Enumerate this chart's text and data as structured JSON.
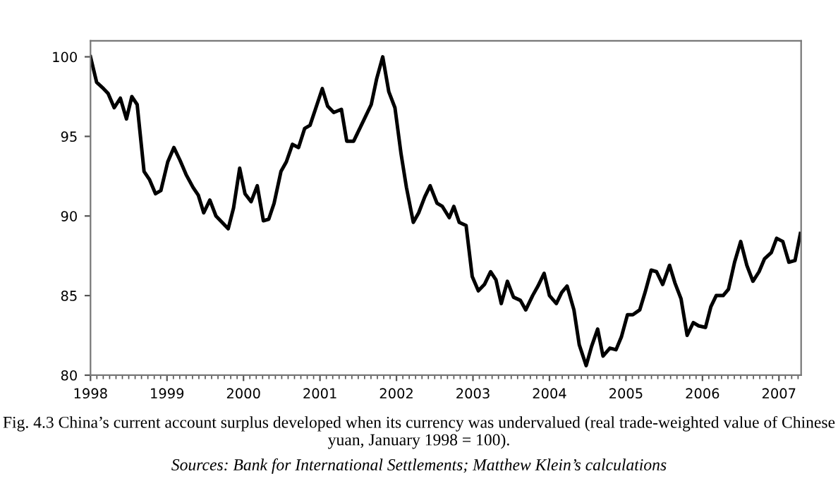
{
  "chart_data": {
    "type": "line",
    "x": [
      1998.0,
      1998.08,
      1998.17,
      1998.23,
      1998.31,
      1998.39,
      1998.47,
      1998.54,
      1998.61,
      1998.7,
      1998.77,
      1998.85,
      1998.92,
      1999.01,
      1999.09,
      1999.17,
      1999.25,
      1999.34,
      1999.41,
      1999.48,
      1999.56,
      1999.64,
      1999.72,
      1999.8,
      1999.87,
      1999.95,
      2000.02,
      2000.1,
      2000.18,
      2000.26,
      2000.33,
      2000.4,
      2000.49,
      2000.56,
      2000.64,
      2000.72,
      2000.8,
      2000.87,
      2000.94,
      2001.03,
      2001.1,
      2001.18,
      2001.28,
      2001.35,
      2001.44,
      2001.51,
      2001.58,
      2001.67,
      2001.74,
      2001.82,
      2001.9,
      2001.98,
      2002.06,
      2002.13,
      2002.22,
      2002.29,
      2002.37,
      2002.44,
      2002.53,
      2002.6,
      2002.69,
      2002.75,
      2002.82,
      2002.91,
      2002.99,
      2003.07,
      2003.15,
      2003.23,
      2003.3,
      2003.37,
      2003.45,
      2003.53,
      2003.62,
      2003.69,
      2003.78,
      2003.85,
      2003.93,
      2004.0,
      2004.09,
      2004.16,
      2004.23,
      2004.32,
      2004.39,
      2004.48,
      2004.55,
      2004.63,
      2004.7,
      2004.79,
      2004.87,
      2004.94,
      2005.02,
      2005.09,
      2005.18,
      2005.25,
      2005.33,
      2005.4,
      2005.48,
      2005.57,
      2005.64,
      2005.72,
      2005.8,
      2005.88,
      2005.95,
      2006.04,
      2006.11,
      2006.18,
      2006.27,
      2006.34,
      2006.42,
      2006.5,
      2006.58,
      2006.66,
      2006.74,
      2006.81,
      2006.9,
      2006.97,
      2007.05,
      2007.13,
      2007.21,
      2007.28
    ],
    "series": [
      {
        "color": "#000000",
        "values": [
          100.0,
          98.4,
          98.0,
          97.7,
          96.8,
          97.4,
          96.1,
          97.5,
          97.0,
          92.8,
          92.3,
          91.4,
          91.6,
          93.4,
          94.3,
          93.5,
          92.6,
          91.8,
          91.3,
          90.2,
          91.0,
          90.0,
          89.6,
          89.2,
          90.5,
          93.0,
          91.4,
          90.9,
          91.9,
          89.7,
          89.8,
          90.8,
          92.8,
          93.4,
          94.5,
          94.3,
          95.5,
          95.7,
          96.7,
          98.0,
          96.9,
          96.5,
          96.7,
          94.7,
          94.7,
          95.4,
          96.1,
          97.0,
          98.6,
          100.0,
          97.8,
          96.8,
          93.9,
          91.8,
          89.6,
          90.2,
          91.2,
          91.9,
          90.8,
          90.6,
          89.9,
          90.6,
          89.6,
          89.4,
          86.2,
          85.3,
          85.7,
          86.5,
          86.0,
          84.5,
          85.9,
          84.9,
          84.7,
          84.1,
          85.0,
          85.6,
          86.4,
          85.0,
          84.5,
          85.2,
          85.6,
          84.1,
          81.9,
          80.6,
          81.8,
          82.9,
          81.2,
          81.7,
          81.6,
          82.4,
          83.8,
          83.8,
          84.1,
          85.2,
          86.6,
          86.5,
          85.7,
          86.9,
          85.8,
          84.8,
          82.5,
          83.3,
          83.1,
          83.0,
          84.3,
          85.0,
          85.0,
          85.4,
          87.1,
          88.4,
          86.9,
          85.9,
          86.5,
          87.3,
          87.7,
          88.6,
          88.4,
          87.1,
          87.2,
          88.9
        ]
      }
    ],
    "xlim": [
      1998,
      2007.29
    ],
    "xticks": [
      1998,
      1999,
      2000,
      2001,
      2002,
      2003,
      2004,
      2005,
      2006,
      2007
    ],
    "ylim": [
      80,
      101
    ],
    "yticks": [
      80,
      85,
      90,
      95,
      100
    ],
    "grid": false,
    "legend": false,
    "marker": "none",
    "line_style": "solid",
    "annotations": [
      "Fig. 4.3 China’s current account surplus developed when its currency was undervalued (real trade-weighted value of Chinese yuan, January 1998 = 100).",
      "Sources: Bank for International Settlements; Matthew Klein’s calculations"
    ]
  }
}
